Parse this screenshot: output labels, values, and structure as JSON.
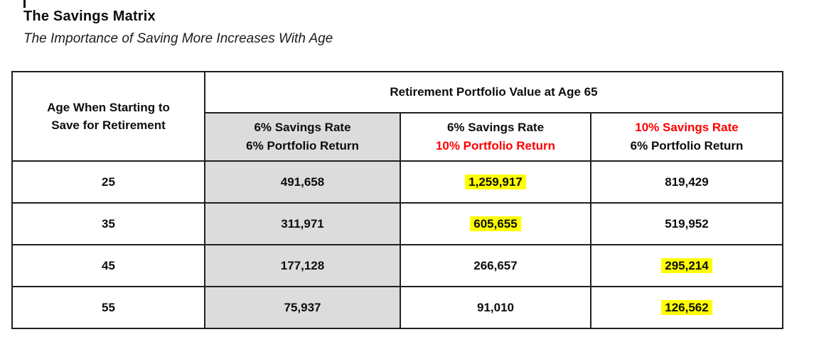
{
  "title": "The Savings Matrix",
  "subtitle": "The Importance of Saving More Increases With Age",
  "table": {
    "corner_header": {
      "line1": "Age When Starting to",
      "line2": "Save for Retirement"
    },
    "group_header": "Retirement Portfolio Value at Age 65",
    "sub_headers": [
      {
        "line1": "6% Savings Rate",
        "line2": "6% Portfolio Return",
        "line1_color": "#0d0d0d",
        "line2_color": "#0d0d0d",
        "shaded": true
      },
      {
        "line1": "6% Savings Rate",
        "line2": "10% Portfolio Return",
        "line1_color": "#0d0d0d",
        "line2_color": "#ff0000",
        "shaded": false
      },
      {
        "line1": "10% Savings Rate",
        "line2": "6% Portfolio Return",
        "line1_color": "#ff0000",
        "line2_color": "#0d0d0d",
        "shaded": false
      }
    ],
    "rows": [
      {
        "age": "25",
        "values": [
          {
            "text": "491,658",
            "highlight": false
          },
          {
            "text": "1,259,917",
            "highlight": true
          },
          {
            "text": "819,429",
            "highlight": false
          }
        ]
      },
      {
        "age": "35",
        "values": [
          {
            "text": "311,971",
            "highlight": false
          },
          {
            "text": "605,655",
            "highlight": true
          },
          {
            "text": "519,952",
            "highlight": false
          }
        ]
      },
      {
        "age": "45",
        "values": [
          {
            "text": "177,128",
            "highlight": false
          },
          {
            "text": "266,657",
            "highlight": false
          },
          {
            "text": "295,214",
            "highlight": true
          }
        ]
      },
      {
        "age": "55",
        "values": [
          {
            "text": "75,937",
            "highlight": false
          },
          {
            "text": "91,010",
            "highlight": false
          },
          {
            "text": "126,562",
            "highlight": true
          }
        ]
      }
    ]
  },
  "colors": {
    "accent_red": "#ff0000",
    "highlight_yellow": "#ffff00",
    "shaded_gray": "#dcdcdc",
    "border_black": "#1f1f1f"
  }
}
